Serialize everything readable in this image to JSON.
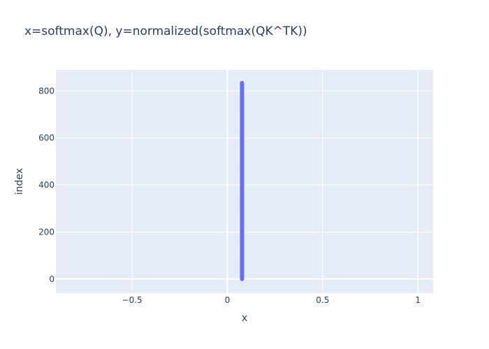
{
  "chart_data": {
    "type": "scatter",
    "title": "x=softmax(Q), y=normalized(softmax(QK^TK))",
    "xlabel": "x",
    "ylabel": "index",
    "xlim": [
      -0.9,
      1.08
    ],
    "ylim": [
      -60,
      890
    ],
    "x_ticks": [
      {
        "value": -0.5,
        "label": "−0.5"
      },
      {
        "value": 0,
        "label": "0"
      },
      {
        "value": 0.5,
        "label": "0.5"
      },
      {
        "value": 1,
        "label": "1"
      }
    ],
    "y_ticks": [
      {
        "value": 0,
        "label": "0"
      },
      {
        "value": 200,
        "label": "200"
      },
      {
        "value": 400,
        "label": "400"
      },
      {
        "value": 600,
        "label": "600"
      },
      {
        "value": 800,
        "label": "800"
      }
    ],
    "series": [
      {
        "marker_color": "#636efa",
        "x_value": 0.077,
        "index_start": 0,
        "index_end": 834,
        "index_step": 6
      }
    ],
    "grid": true,
    "zero_lines": true,
    "legend": "none",
    "colors": {
      "plot_background": "#e5ecf6",
      "grid": "#ffffff",
      "text": "#2a3f5f",
      "paper": "#ffffff"
    }
  }
}
